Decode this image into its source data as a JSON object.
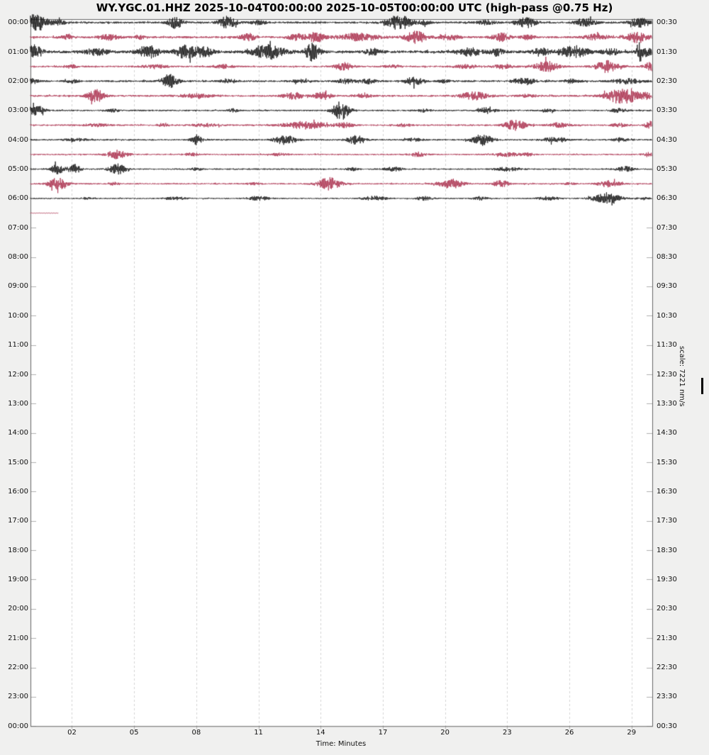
{
  "chart_data": {
    "type": "line",
    "subtype": "helicorder-dayplot",
    "title": "WY.YGC.01.HHZ 2025-10-04T00:00:00 2025-10-05T00:00:00 UTC (high-pass @0.75 Hz)",
    "station": "WY.YGC.01.HHZ",
    "time_start": "2025-10-04T00:00:00",
    "time_end": "2025-10-05T00:00:00",
    "timezone": "UTC",
    "filter": "high-pass @0.75 Hz",
    "xlabel": "Time: Minutes",
    "x_range_minutes": [
      0,
      30
    ],
    "x_tick_minutes": [
      2,
      5,
      8,
      11,
      14,
      17,
      20,
      23,
      26,
      29
    ],
    "x_tick_labels": [
      "02",
      "05",
      "08",
      "11",
      "14",
      "17",
      "20",
      "23",
      "26",
      "29"
    ],
    "minutes_per_row": 30,
    "rows_total": 48,
    "grid": "vertical-dashed",
    "trace_colors": {
      "even_rows": "#111111",
      "odd_rows": "#AA2D4B"
    },
    "y_axis_left_labels": [
      "00:00",
      "01:00",
      "02:00",
      "03:00",
      "04:00",
      "05:00",
      "06:00",
      "07:00",
      "08:00",
      "09:00",
      "10:00",
      "11:00",
      "12:00",
      "13:00",
      "14:00",
      "15:00",
      "16:00",
      "17:00",
      "18:00",
      "19:00",
      "20:00",
      "21:00",
      "22:00",
      "23:00",
      "00:00"
    ],
    "y_axis_right_labels": [
      "00:30",
      "01:30",
      "02:30",
      "03:30",
      "04:30",
      "05:30",
      "06:30",
      "07:30",
      "08:30",
      "09:30",
      "10:30",
      "11:30",
      "12:30",
      "13:30",
      "14:30",
      "15:30",
      "16:30",
      "17:30",
      "18:30",
      "19:30",
      "20:30",
      "21:30",
      "22:30",
      "23:30",
      "00:30"
    ],
    "traces": [
      {
        "row": 0,
        "start": "00:00",
        "end": "00:30",
        "color": "black",
        "end_min": 30,
        "base": 1.4,
        "events": [
          [
            0.3,
            12,
            0.5
          ],
          [
            1.4,
            3,
            0.3
          ],
          [
            7.0,
            8,
            0.35
          ],
          [
            9.5,
            9,
            0.4
          ],
          [
            11.0,
            2.5,
            0.4
          ],
          [
            17.8,
            10,
            0.6
          ],
          [
            19.0,
            2.5,
            0.3
          ],
          [
            22.0,
            3,
            0.4
          ],
          [
            23.9,
            7,
            0.45
          ],
          [
            26.8,
            5,
            0.5
          ],
          [
            29.4,
            6,
            0.5
          ]
        ]
      },
      {
        "row": 1,
        "start": "00:30",
        "end": "01:00",
        "color": "red",
        "end_min": 30,
        "base": 1.5,
        "events": [
          [
            1.8,
            3,
            0.3
          ],
          [
            3.8,
            3.5,
            0.5
          ],
          [
            5.2,
            2.5,
            0.3
          ],
          [
            10.5,
            4.5,
            0.4
          ],
          [
            12.9,
            4.5,
            0.45
          ],
          [
            13.8,
            7,
            0.35
          ],
          [
            15.8,
            5,
            1.0
          ],
          [
            18.6,
            8,
            0.5
          ],
          [
            20.2,
            3.5,
            0.5
          ],
          [
            22.7,
            5.5,
            0.4
          ],
          [
            24.0,
            3,
            0.3
          ],
          [
            27.3,
            4.5,
            0.5
          ],
          [
            29.3,
            7.5,
            0.5
          ]
        ]
      },
      {
        "row": 2,
        "start": "01:00",
        "end": "01:30",
        "color": "black",
        "end_min": 30,
        "base": 1.9,
        "events": [
          [
            0.2,
            9,
            0.4
          ],
          [
            3.2,
            4,
            0.6
          ],
          [
            5.7,
            8,
            0.5
          ],
          [
            7.5,
            9,
            0.5
          ],
          [
            8.4,
            7,
            0.4
          ],
          [
            11.5,
            9,
            0.8
          ],
          [
            13.6,
            12,
            0.35
          ],
          [
            16.5,
            4,
            0.4
          ],
          [
            21.2,
            5,
            0.6
          ],
          [
            22.5,
            5,
            0.3
          ],
          [
            24.6,
            5,
            0.4
          ],
          [
            26.2,
            8,
            0.7
          ],
          [
            28.0,
            4,
            0.4
          ],
          [
            29.4,
            12,
            0.2
          ],
          [
            29.8,
            5,
            0.3
          ]
        ]
      },
      {
        "row": 3,
        "start": "01:30",
        "end": "02:00",
        "color": "red",
        "end_min": 30,
        "base": 1.2,
        "events": [
          [
            2.0,
            2,
            0.4
          ],
          [
            6.0,
            2.5,
            0.6
          ],
          [
            9.3,
            2.5,
            0.5
          ],
          [
            15.1,
            5.5,
            0.4
          ],
          [
            17.5,
            2,
            0.4
          ],
          [
            21.0,
            2.5,
            0.6
          ],
          [
            22.8,
            3,
            0.5
          ],
          [
            24.9,
            7.5,
            0.55
          ],
          [
            27.8,
            8,
            0.55
          ],
          [
            29.9,
            6,
            0.3
          ]
        ]
      },
      {
        "row": 4,
        "start": "02:00",
        "end": "02:30",
        "color": "black",
        "end_min": 30,
        "base": 1.3,
        "events": [
          [
            0.1,
            4,
            0.25
          ],
          [
            2.0,
            2,
            0.3
          ],
          [
            6.7,
            9,
            0.4
          ],
          [
            9.6,
            2.5,
            0.4
          ],
          [
            13.0,
            2.5,
            0.35
          ],
          [
            15.2,
            3,
            0.4
          ],
          [
            16.3,
            3.5,
            0.35
          ],
          [
            18.5,
            6,
            0.4
          ],
          [
            20.0,
            2,
            0.3
          ],
          [
            23.8,
            5,
            0.5
          ],
          [
            26.1,
            2.5,
            0.4
          ],
          [
            28.8,
            3.5,
            0.7
          ]
        ]
      },
      {
        "row": 5,
        "start": "02:30",
        "end": "03:00",
        "color": "red",
        "end_min": 30,
        "base": 1.3,
        "events": [
          [
            3.15,
            9,
            0.4
          ],
          [
            8.0,
            2.5,
            0.8
          ],
          [
            12.7,
            4.5,
            0.5
          ],
          [
            14.1,
            5,
            0.4
          ],
          [
            16.0,
            2.5,
            0.4
          ],
          [
            21.4,
            5,
            0.7
          ],
          [
            24.0,
            2,
            0.4
          ],
          [
            28.6,
            12,
            0.8
          ],
          [
            29.8,
            3,
            0.25
          ]
        ]
      },
      {
        "row": 6,
        "start": "03:00",
        "end": "03:30",
        "color": "black",
        "end_min": 30,
        "base": 1.1,
        "events": [
          [
            0.25,
            7,
            0.4
          ],
          [
            4.0,
            1.8,
            0.3
          ],
          [
            9.8,
            2,
            0.3
          ],
          [
            15.0,
            13,
            0.4
          ],
          [
            19.0,
            2,
            0.3
          ],
          [
            22.0,
            4,
            0.4
          ],
          [
            25.0,
            1.8,
            0.3
          ],
          [
            28.4,
            2.5,
            0.4
          ]
        ]
      },
      {
        "row": 7,
        "start": "03:30",
        "end": "04:00",
        "color": "red",
        "end_min": 30,
        "base": 1.1,
        "events": [
          [
            3.2,
            2,
            0.6
          ],
          [
            6.4,
            2,
            0.3
          ],
          [
            8.5,
            2,
            0.7
          ],
          [
            13.3,
            5,
            1.1
          ],
          [
            15.2,
            3,
            0.4
          ],
          [
            18.0,
            1.8,
            0.4
          ],
          [
            23.4,
            7.5,
            0.5
          ],
          [
            25.5,
            3.5,
            0.5
          ],
          [
            28.4,
            2.5,
            0.4
          ],
          [
            29.9,
            5,
            0.25
          ]
        ]
      },
      {
        "row": 8,
        "start": "04:00",
        "end": "04:30",
        "color": "black",
        "end_min": 30,
        "base": 1.1,
        "events": [
          [
            2.2,
            1.8,
            0.5
          ],
          [
            8.0,
            7,
            0.25
          ],
          [
            12.3,
            7,
            0.5
          ],
          [
            15.7,
            6,
            0.4
          ],
          [
            18.5,
            2,
            0.4
          ],
          [
            21.8,
            7.5,
            0.5
          ],
          [
            25.3,
            4,
            0.5
          ],
          [
            28.4,
            2.5,
            0.4
          ]
        ]
      },
      {
        "row": 9,
        "start": "04:30",
        "end": "05:00",
        "color": "red",
        "end_min": 30,
        "base": 1.0,
        "events": [
          [
            4.2,
            6,
            0.5
          ],
          [
            7.8,
            2,
            0.4
          ],
          [
            12.0,
            1.8,
            0.4
          ],
          [
            18.7,
            3,
            0.4
          ],
          [
            23.0,
            2.5,
            0.6
          ],
          [
            24.0,
            2,
            0.3
          ],
          [
            29.8,
            3,
            0.25
          ]
        ]
      },
      {
        "row": 10,
        "start": "05:00",
        "end": "05:30",
        "color": "black",
        "end_min": 30,
        "base": 1.0,
        "events": [
          [
            1.3,
            7,
            0.3
          ],
          [
            2.1,
            6.5,
            0.3
          ],
          [
            4.2,
            7,
            0.4
          ],
          [
            8.0,
            1.5,
            0.3
          ],
          [
            15.5,
            2,
            0.3
          ],
          [
            17.5,
            2.5,
            0.5
          ],
          [
            23.0,
            2.5,
            0.6
          ],
          [
            28.7,
            3.5,
            0.4
          ]
        ]
      },
      {
        "row": 11,
        "start": "05:30",
        "end": "06:00",
        "color": "red",
        "end_min": 30,
        "base": 1.0,
        "events": [
          [
            1.3,
            8,
            0.45
          ],
          [
            4.0,
            2,
            0.25
          ],
          [
            10.8,
            1.8,
            0.3
          ],
          [
            14.4,
            8.5,
            0.55
          ],
          [
            20.3,
            6.5,
            0.6
          ],
          [
            22.7,
            5,
            0.35
          ],
          [
            26.0,
            1.5,
            0.3
          ],
          [
            27.9,
            4.5,
            0.5
          ]
        ]
      },
      {
        "row": 12,
        "start": "06:00",
        "end": "06:30",
        "color": "black",
        "end_min": 30,
        "base": 0.9,
        "events": [
          [
            2.8,
            1.8,
            0.3
          ],
          [
            7.0,
            2,
            0.5
          ],
          [
            11.0,
            3,
            0.5
          ],
          [
            16.6,
            3,
            0.55
          ],
          [
            19.0,
            2.5,
            0.4
          ],
          [
            21.7,
            2.5,
            0.35
          ],
          [
            25.0,
            2.5,
            0.5
          ],
          [
            27.8,
            6.5,
            0.7
          ],
          [
            29.5,
            2,
            0.3
          ]
        ]
      },
      {
        "row": 13,
        "start": "06:30",
        "end": "07:00",
        "color": "red",
        "end_min": 1.35,
        "base": 0.4,
        "events": []
      }
    ]
  },
  "scale": {
    "label": "scale: 7221 nm/s",
    "value": 7221,
    "unit": "nm/s"
  },
  "colors": {
    "background": "#f0f0ef",
    "plot_background": "#ffffff",
    "trace_black": "#111111",
    "trace_red": "#AA2D4B",
    "frame": "#666666",
    "gridline": "#d4d4d4",
    "tick": "#b0b0b0"
  }
}
